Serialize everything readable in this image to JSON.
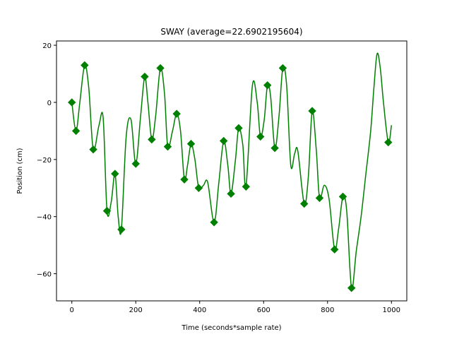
{
  "chart_data": {
    "type": "line",
    "title": "SWAY (average=22.6902195604)",
    "xlabel": "Time (seconds*sample rate)",
    "ylabel": "Position (cm)",
    "xlim": [
      -48,
      1048
    ],
    "ylim": [
      -69.5,
      21.5
    ],
    "xticks": [
      0,
      200,
      400,
      600,
      800,
      1000
    ],
    "yticks": [
      -60,
      -40,
      -20,
      0,
      20
    ],
    "grid": false,
    "colors": {
      "series": "#008000"
    },
    "series": [
      {
        "style": "smooth line with diamond markers",
        "x": [
          0,
          13,
          40,
          67,
          110,
          135,
          155,
          200,
          228,
          250,
          277,
          300,
          328,
          352,
          373,
          397,
          445,
          475,
          498,
          522,
          545,
          590,
          612,
          635,
          660,
          727,
          752,
          775,
          822,
          848,
          875,
          990
        ],
        "values": [
          0,
          -10,
          13,
          -16.5,
          -38,
          -25,
          -44.5,
          -21.5,
          9,
          -13,
          12,
          -15.5,
          -4,
          -27,
          -14.5,
          -30,
          -42,
          -13.5,
          -32,
          -9,
          -29.5,
          -12,
          6,
          -16,
          12,
          -35.5,
          -3,
          -33.5,
          -51.5,
          -33,
          -65,
          -14
        ]
      }
    ],
    "line_path_x": [
      0,
      13,
      25,
      40,
      53,
      67,
      85,
      98,
      110,
      123,
      135,
      145,
      155,
      170,
      185,
      200,
      215,
      228,
      238,
      250,
      262,
      277,
      290,
      300,
      315,
      328,
      340,
      352,
      362,
      373,
      385,
      397,
      412,
      425,
      445,
      460,
      475,
      488,
      498,
      512,
      522,
      535,
      545,
      565,
      580,
      590,
      602,
      612,
      622,
      635,
      648,
      660,
      672,
      685,
      697,
      707,
      727,
      740,
      752,
      765,
      775,
      790,
      805,
      822,
      835,
      848,
      860,
      875,
      890,
      905,
      920,
      935,
      945,
      955,
      965,
      975,
      990,
      1000
    ],
    "line_path_y": [
      0,
      -10,
      0,
      13,
      5,
      -16.5,
      -8,
      -5.5,
      -38,
      -35,
      -25,
      -40,
      -44.5,
      -12,
      -6,
      -21.5,
      -5,
      9,
      0,
      -13,
      -5,
      12,
      3,
      -15.5,
      -10,
      -4,
      -10,
      -27,
      -22,
      -14.5,
      -20,
      -30,
      -29,
      -28,
      -42,
      -28,
      -13.5,
      -22,
      -32,
      -20,
      -9,
      -15,
      -29.5,
      6,
      0,
      -12,
      -6,
      6,
      2,
      -16,
      -5,
      12,
      6,
      -22,
      -18,
      -17,
      -35.5,
      -26,
      -3,
      -17,
      -33.5,
      -29,
      -34,
      -51.5,
      -44,
      -33,
      -38,
      -65,
      -52,
      -40,
      -25,
      -10,
      5,
      17,
      12,
      0,
      -14,
      -8
    ]
  }
}
